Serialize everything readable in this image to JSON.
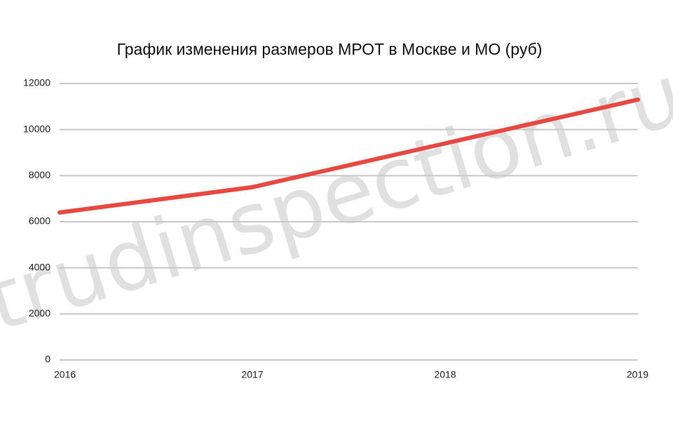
{
  "chart_data": {
    "type": "line",
    "title": "График изменения размеров МРОТ в Москве и МО (руб)",
    "watermark": "trudinspection.ru",
    "x": [
      2016,
      2017,
      2018,
      2019
    ],
    "xlim": [
      2016,
      2019
    ],
    "xticks": [
      2016,
      2017,
      2018,
      2019
    ],
    "series": [
      {
        "name": "МРОТ",
        "color": "#e8483f",
        "values": [
          6400,
          7500,
          9400,
          11300
        ]
      }
    ],
    "ylim": [
      0,
      12000
    ],
    "yticks": [
      0,
      2000,
      4000,
      6000,
      8000,
      10000,
      12000
    ],
    "grid": true
  }
}
